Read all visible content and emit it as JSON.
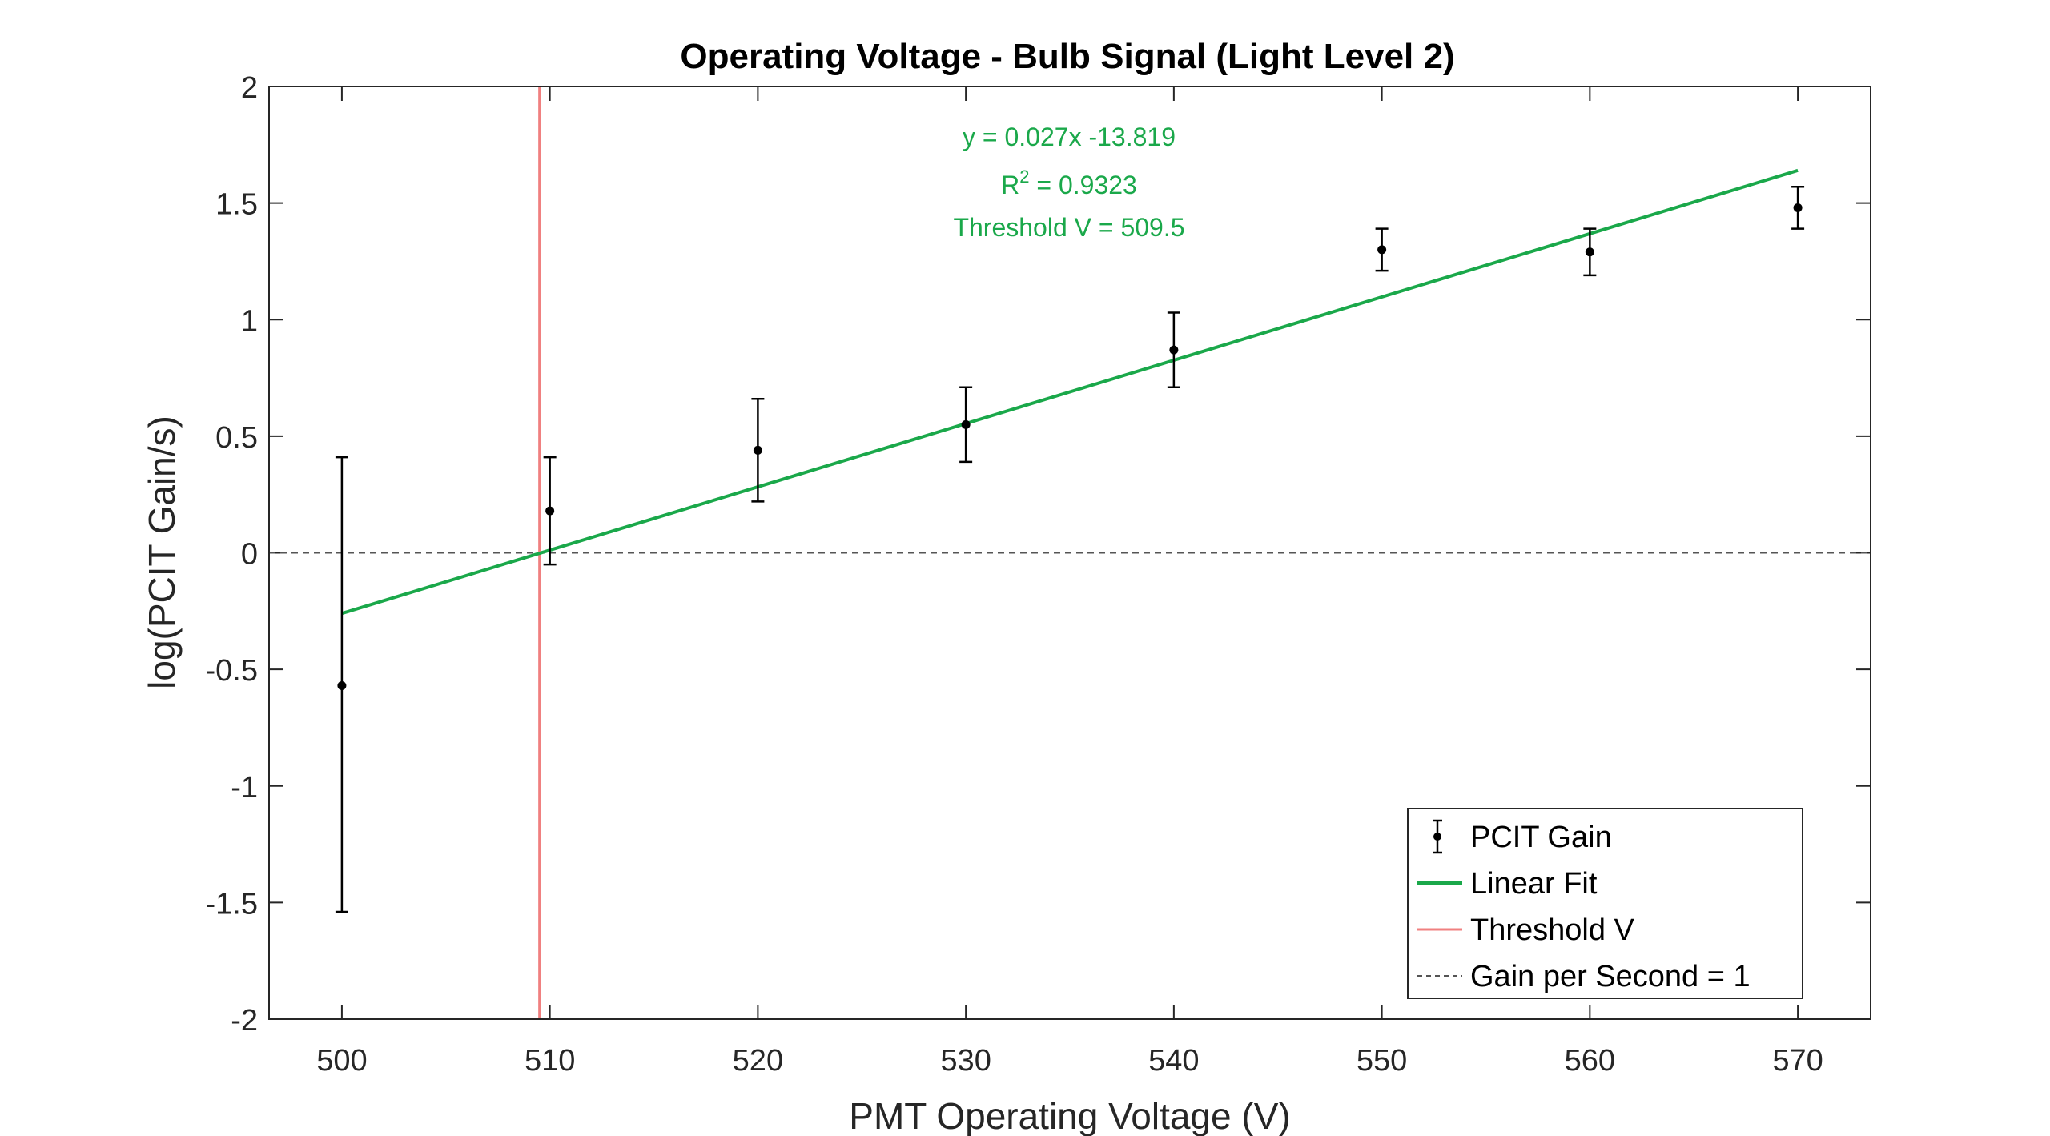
{
  "chart_data": {
    "type": "scatter",
    "title": "Operating Voltage - Bulb Signal (Light Level 2)",
    "xlabel": "PMT Operating Voltage (V)",
    "ylabel": "log(PCIT Gain/s)",
    "xlim": [
      496.5,
      573.5
    ],
    "ylim": [
      -2,
      2
    ],
    "xticks": [
      500,
      510,
      520,
      530,
      540,
      550,
      560,
      570
    ],
    "yticks": [
      -2,
      -1.5,
      -1,
      -0.5,
      0,
      0.5,
      1,
      1.5,
      2
    ],
    "xtick_labels": [
      "500",
      "510",
      "520",
      "530",
      "540",
      "550",
      "560",
      "570"
    ],
    "ytick_labels": [
      "-2",
      "-1.5",
      "-1",
      "-0.5",
      "0",
      "0.5",
      "1",
      "1.5",
      "2"
    ],
    "grid": false,
    "legend_position": "bottom-right",
    "series": [
      {
        "name": "PCIT Gain",
        "kind": "errorbar",
        "color": "#000000",
        "x": [
          500,
          510,
          520,
          530,
          540,
          550,
          560,
          570
        ],
        "y": [
          -0.57,
          0.18,
          0.44,
          0.55,
          0.87,
          1.3,
          1.29,
          1.48
        ],
        "err_low": [
          0.97,
          0.23,
          0.22,
          0.16,
          0.16,
          0.09,
          0.1,
          0.09
        ],
        "err_high": [
          0.98,
          0.23,
          0.22,
          0.16,
          0.16,
          0.09,
          0.1,
          0.09
        ]
      },
      {
        "name": "Linear Fit",
        "kind": "line",
        "color": "#1aa84a",
        "x": [
          500,
          570
        ],
        "y": [
          -0.26,
          1.64
        ]
      },
      {
        "name": "Threshold V",
        "kind": "vline",
        "color": "#f08080",
        "x": 509.5
      },
      {
        "name": "Gain per Second = 1",
        "kind": "hline",
        "color": "#555555",
        "y": 0
      }
    ],
    "annotation": {
      "equation": "y = 0.027x -13.819",
      "r2_prefix": "R",
      "r2_sup": "2",
      "r2_value": " = 0.9323",
      "threshold": "Threshold V = 509.5",
      "color": "#1aa84a"
    }
  }
}
